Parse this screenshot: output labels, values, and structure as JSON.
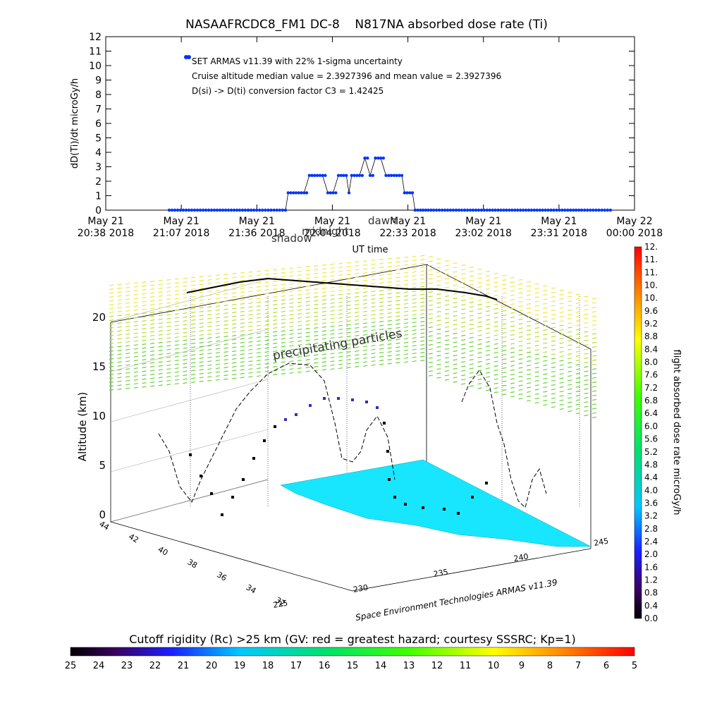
{
  "chart_data": [
    {
      "type": "scatter",
      "title": "NASAAFRCDC8_FM1 DC-8    N817NA absorbed dose rate (Ti)",
      "ylabel": "dD(Ti)/dt microGy/h",
      "xlabel": "UT time",
      "ylim": [
        0,
        12
      ],
      "yticks": [
        "0",
        "1",
        "2",
        "3",
        "4",
        "5",
        "6",
        "7",
        "8",
        "9",
        "10",
        "11",
        "12"
      ],
      "xticks": [
        {
          "top": "May 21",
          "bottom": "20:38 2018"
        },
        {
          "top": "May 21",
          "bottom": "21:07 2018"
        },
        {
          "top": "May 21",
          "bottom": "21:36 2018"
        },
        {
          "top": "May 21",
          "bottom": "22:04 2018"
        },
        {
          "top": "May 21",
          "bottom": "22:33 2018"
        },
        {
          "top": "May 21",
          "bottom": "23:02 2018"
        },
        {
          "top": "May 21",
          "bottom": "23:31 2018"
        },
        {
          "top": "May 22",
          "bottom": "00:00 2018"
        }
      ],
      "annotations": [
        "SET ARMAS v11.39 with 22% 1-sigma uncertainty",
        "Cruise altitude median value = 2.3927396 and mean value = 2.3927396",
        "D(si) -> D(ti) conversion factor C3 = 1.42425"
      ],
      "overlay_labels": [
        "shadow",
        "midnight",
        "dawn"
      ],
      "series": [
        {
          "color": "#0033ff",
          "x": [
            0.34,
            0.36,
            0.38,
            0.4,
            0.42,
            0.44,
            0.46,
            0.48,
            0.5,
            0.52,
            0.54,
            0.56,
            0.58,
            0.6,
            0.62,
            0.64,
            0.66,
            0.68,
            0.7,
            0.72,
            0.74,
            0.76,
            0.78,
            0.8,
            0.82,
            0.84,
            0.86,
            0.88,
            0.9,
            0.92,
            0.94,
            0.96,
            0.98,
            1.0,
            1.02,
            1.04,
            1.06,
            1.08,
            1.1,
            1.12,
            1.14,
            1.16,
            1.18,
            1.2,
            1.22,
            1.24,
            1.26,
            1.28,
            1.3,
            1.32,
            1.34,
            1.36,
            1.38,
            1.4,
            1.42,
            1.44,
            1.46,
            1.48,
            1.5,
            1.52,
            1.54,
            1.56,
            1.58,
            1.6,
            1.62,
            1.64,
            1.66,
            1.68,
            1.7,
            1.72,
            1.74,
            1.76,
            1.78,
            1.8,
            1.82,
            1.84,
            1.86,
            1.88,
            1.9,
            1.92,
            1.94,
            1.96,
            1.98,
            2.0,
            2.02,
            2.04,
            2.06,
            2.08,
            2.1,
            2.12,
            2.14,
            2.16,
            2.18,
            2.2,
            2.22,
            2.24,
            2.26,
            2.28,
            2.3,
            2.32,
            2.34,
            2.36,
            2.38,
            2.4,
            2.42,
            2.44,
            2.46,
            2.48,
            2.5,
            2.52,
            2.54,
            2.56,
            2.58,
            2.6,
            2.62,
            2.64,
            2.66,
            2.68,
            2.7,
            2.72,
            2.74,
            2.76,
            2.78,
            2.8,
            2.82,
            2.84,
            2.86,
            2.88,
            2.9,
            2.92,
            2.94,
            2.96,
            2.98,
            3.0,
            3.02,
            3.04,
            3.06,
            3.08,
            3.1,
            3.12,
            3.14,
            3.16,
            3.18,
            3.2
          ],
          "y_ref": "piecewise"
        }
      ],
      "dose_points": [
        {
          "t": 0.12,
          "v": 0
        },
        {
          "t": 0.2,
          "v": 0
        },
        {
          "t": 0.28,
          "v": 0
        },
        {
          "t": 0.34,
          "v": 0
        },
        {
          "t": 0.345,
          "v": 1.2
        },
        {
          "t": 0.36,
          "v": 1.2
        },
        {
          "t": 0.375,
          "v": 1.2
        },
        {
          "t": 0.385,
          "v": 2.4
        },
        {
          "t": 0.4,
          "v": 2.4
        },
        {
          "t": 0.41,
          "v": 2.4
        },
        {
          "t": 0.42,
          "v": 1.2
        },
        {
          "t": 0.43,
          "v": 1.2
        },
        {
          "t": 0.44,
          "v": 2.4
        },
        {
          "t": 0.45,
          "v": 2.4
        },
        {
          "t": 0.455,
          "v": 2.4
        },
        {
          "t": 0.46,
          "v": 1.2
        },
        {
          "t": 0.465,
          "v": 2.4
        },
        {
          "t": 0.48,
          "v": 2.4
        },
        {
          "t": 0.49,
          "v": 3.6
        },
        {
          "t": 0.5,
          "v": 2.4
        },
        {
          "t": 0.51,
          "v": 3.6
        },
        {
          "t": 0.52,
          "v": 3.6
        },
        {
          "t": 0.53,
          "v": 2.4
        },
        {
          "t": 0.545,
          "v": 2.4
        },
        {
          "t": 0.56,
          "v": 2.4
        },
        {
          "t": 0.565,
          "v": 1.2
        },
        {
          "t": 0.575,
          "v": 1.2
        },
        {
          "t": 0.58,
          "v": 1.2
        },
        {
          "t": 0.585,
          "v": 0
        },
        {
          "t": 0.62,
          "v": 0
        },
        {
          "t": 0.7,
          "v": 0
        },
        {
          "t": 0.8,
          "v": 0
        },
        {
          "t": 0.9,
          "v": 0
        },
        {
          "t": 0.96,
          "v": 0
        }
      ]
    },
    {
      "type": "scatter",
      "title": "",
      "zlabel": "Altitude (km)",
      "zticks": [
        "0",
        "5",
        "10",
        "15",
        "20"
      ],
      "lat_ticks": [
        "44",
        "42",
        "40",
        "38",
        "36",
        "34",
        "32"
      ],
      "lon_ticks": [
        "225",
        "230",
        "235",
        "240",
        "245"
      ],
      "region_labels": [
        "precipitating particles"
      ],
      "credit": "Space Environment Technologies ARMAS v11.39"
    }
  ],
  "colorbar_right": {
    "label": "flight absorbed dose rate microGy/h",
    "ticks": [
      "0.0",
      "0.4",
      "0.8",
      "1.2",
      "1.6",
      "2.0",
      "2.4",
      "2.8",
      "3.2",
      "3.6",
      "4.0",
      "4.4",
      "4.8",
      "5.2",
      "5.6",
      "6.0",
      "6.4",
      "6.8",
      "7.2",
      "7.6",
      "8.0",
      "8.4",
      "8.8",
      "9.2",
      "9.6",
      "10.",
      "10.",
      "11.",
      "11.",
      "12."
    ]
  },
  "colorbar_bottom": {
    "label": "Cutoff rigidity (Rc) >25 km (GV: red = greatest hazard; courtesy SSSRC; Kp=1)",
    "ticks": [
      "25",
      "24",
      "23",
      "22",
      "21",
      "20",
      "19",
      "18",
      "17",
      "16",
      "15",
      "14",
      "13",
      "12",
      "11",
      "10",
      "9",
      "8",
      "7",
      "6",
      "5"
    ]
  }
}
